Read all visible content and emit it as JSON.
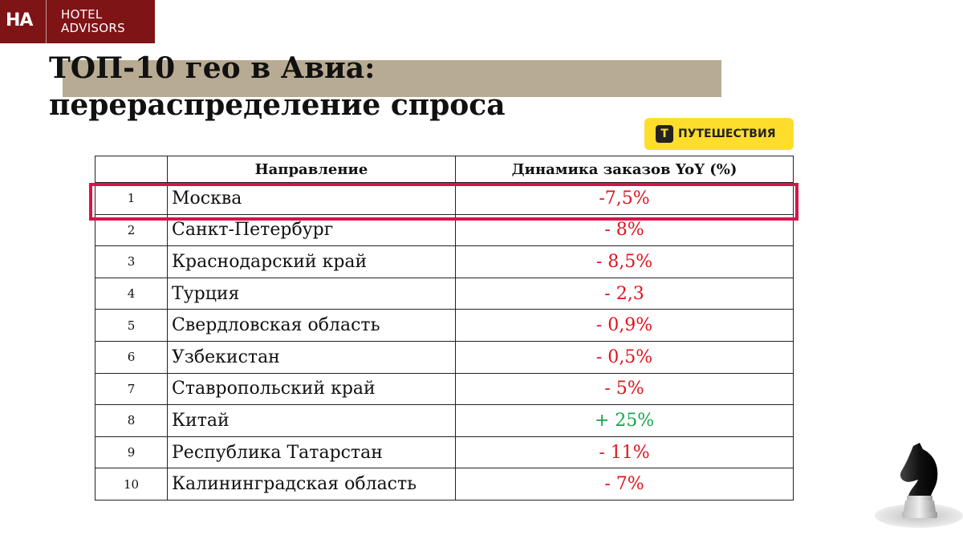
{
  "logo": {
    "mark": "HA",
    "line1": "HOTEL",
    "line2": "ADVISORS"
  },
  "title": {
    "line1": "ТОП-10 гео в Авиа:",
    "line2": "перераспределение спроса"
  },
  "badge": {
    "icon": "Т",
    "label": "ПУТЕШЕСТВИЯ"
  },
  "table": {
    "headers": {
      "num": "",
      "direction": "Направление",
      "dynamics": "Динамика заказов YoY (%)"
    },
    "rows": [
      {
        "num": "1",
        "direction": "Москва",
        "dynamics": "-7,5%",
        "trend": "negative"
      },
      {
        "num": "2",
        "direction": "Санкт-Петербург",
        "dynamics": "- 8%",
        "trend": "negative"
      },
      {
        "num": "3",
        "direction": "Краснодарский край",
        "dynamics": "- 8,5%",
        "trend": "negative"
      },
      {
        "num": "4",
        "direction": "Турция",
        "dynamics": "- 2,3",
        "trend": "negative"
      },
      {
        "num": "5",
        "direction": "Свердловская область",
        "dynamics": "- 0,9%",
        "trend": "negative"
      },
      {
        "num": "6",
        "direction": "Узбекистан",
        "dynamics": "- 0,5%",
        "trend": "negative"
      },
      {
        "num": "7",
        "direction": "Ставропольский край",
        "dynamics": "- 5%",
        "trend": "negative"
      },
      {
        "num": "8",
        "direction": "Китай",
        "dynamics": "+ 25%",
        "trend": "positive"
      },
      {
        "num": "9",
        "direction": "Республика Татарстан",
        "dynamics": "- 11%",
        "trend": "negative"
      },
      {
        "num": "10",
        "direction": "Калининградская область",
        "dynamics": "- 7%",
        "trend": "negative"
      }
    ]
  },
  "colors": {
    "brand": "#7f1416",
    "accent_bar": "#b8ab93",
    "highlight": "#d7134a",
    "negative": "#e0141e",
    "positive": "#16a34a",
    "badge": "#ffdd2d"
  },
  "icons": {
    "decoration": "chess-knight-icon"
  }
}
